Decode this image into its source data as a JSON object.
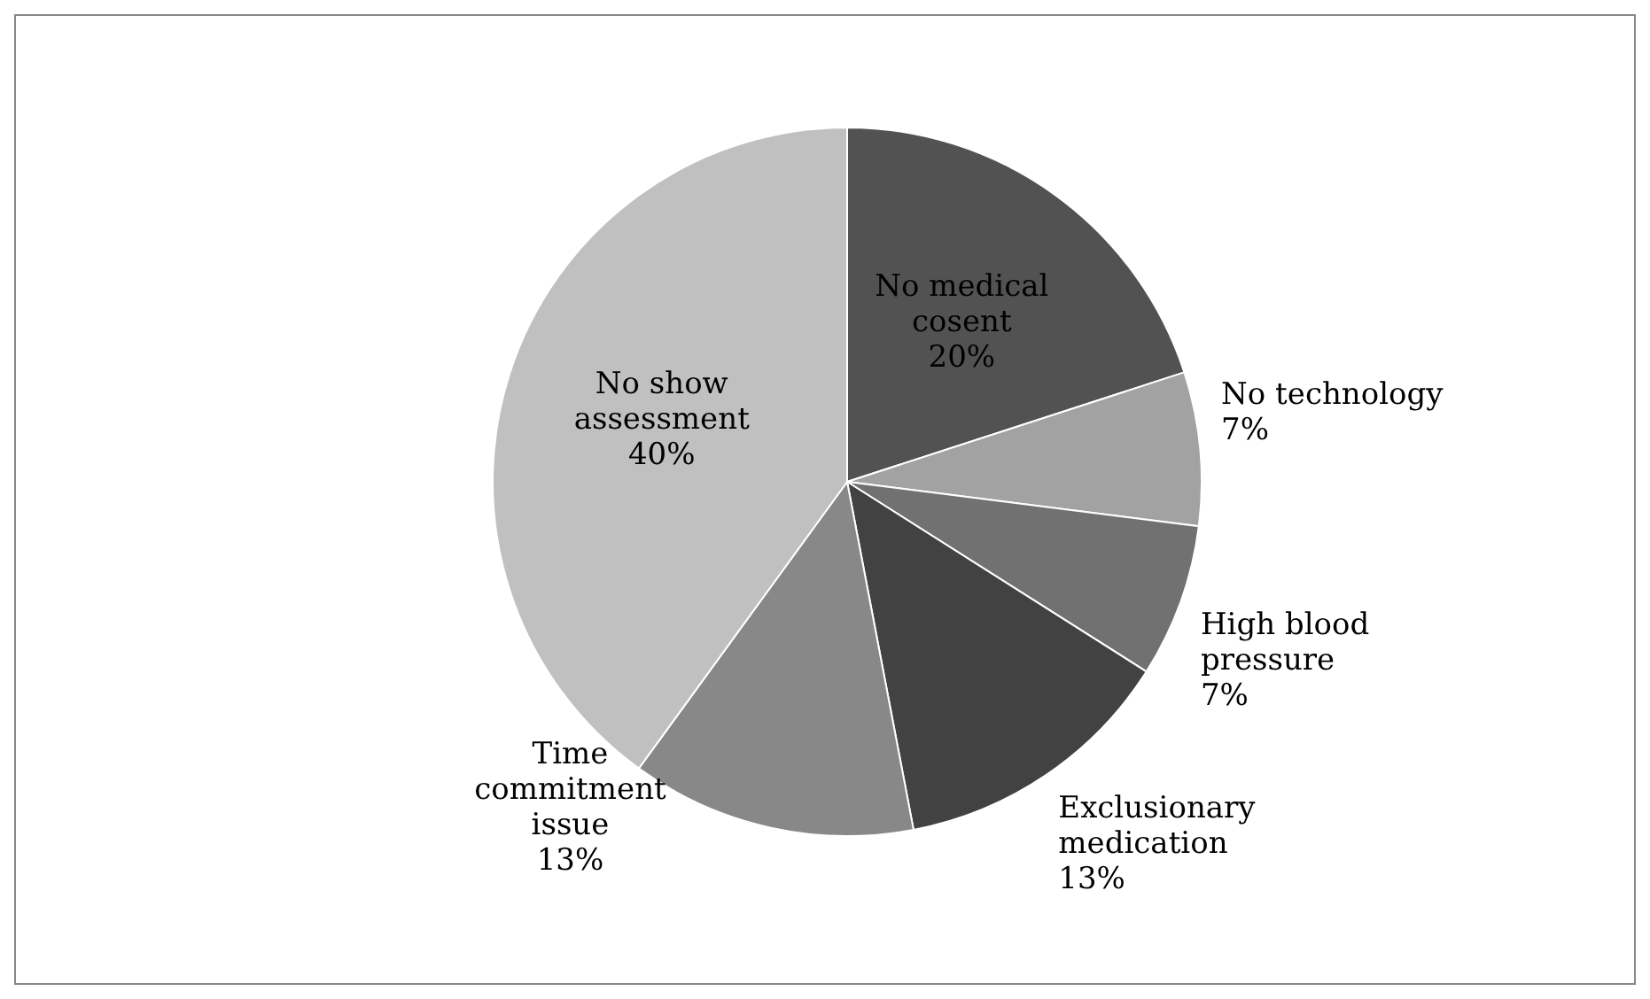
{
  "chart_data": {
    "type": "pie",
    "categories": [
      "No medical cosent",
      "No technology",
      "High blood pressure",
      "Exclusionary medication",
      "Time commitment issue",
      "No show assessment"
    ],
    "values": [
      20,
      7,
      7,
      13,
      13,
      40
    ],
    "colors": [
      "#525252",
      "#a2a2a2",
      "#717171",
      "#424242",
      "#888888",
      "#c0c0c0"
    ],
    "value_labels": [
      "20%",
      "7%",
      "7%",
      "13%",
      "13%",
      "40%"
    ]
  }
}
